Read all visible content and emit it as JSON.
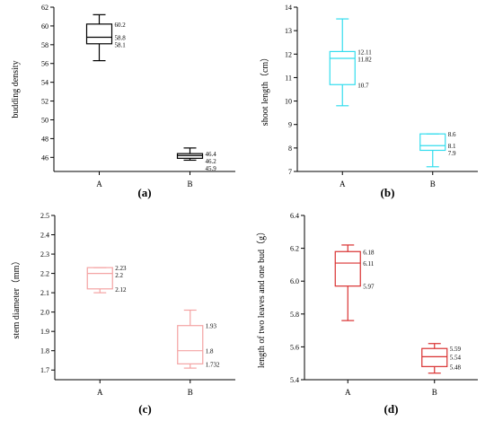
{
  "chart_data": [
    {
      "type": "box",
      "panel_label": "(a)",
      "ylabel": "budding density",
      "categories": [
        "A",
        "B"
      ],
      "ylim": [
        44.5,
        62
      ],
      "yticks": [
        46,
        48,
        50,
        52,
        54,
        56,
        58,
        60,
        62
      ],
      "color": "#000000",
      "boxes": [
        {
          "category": "A",
          "min": 56.3,
          "q1": 58.1,
          "median": 58.8,
          "q3": 60.2,
          "max": 61.2,
          "labels": [
            "60.2",
            "58.8",
            "58.1"
          ]
        },
        {
          "category": "B",
          "min": 45.7,
          "q1": 45.9,
          "median": 46.2,
          "q3": 46.4,
          "max": 47.0,
          "labels": [
            "46.4",
            "46.2",
            "45.9"
          ]
        }
      ]
    },
    {
      "type": "box",
      "panel_label": "(b)",
      "ylabel": "shoot length（cm）",
      "categories": [
        "A",
        "B"
      ],
      "ylim": [
        7,
        14
      ],
      "yticks": [
        7,
        8,
        9,
        10,
        11,
        12,
        13,
        14
      ],
      "color": "#33ddee",
      "boxes": [
        {
          "category": "A",
          "min": 9.8,
          "q1": 10.7,
          "median": 11.82,
          "q3": 12.11,
          "max": 13.5,
          "labels": [
            "12.11",
            "11.82",
            "10.7"
          ]
        },
        {
          "category": "B",
          "min": 7.2,
          "q1": 7.9,
          "median": 8.1,
          "q3": 8.6,
          "max": 8.6,
          "labels": [
            "8.6",
            "8.1",
            "7.9"
          ]
        }
      ]
    },
    {
      "type": "box",
      "panel_label": "(c)",
      "ylabel": "stem diameter（mm）",
      "categories": [
        "A",
        "B"
      ],
      "ylim": [
        1.65,
        2.5
      ],
      "yticks": [
        1.7,
        1.8,
        1.9,
        2.0,
        2.1,
        2.2,
        2.3,
        2.4,
        2.5
      ],
      "color": "#f4a3a3",
      "boxes": [
        {
          "category": "A",
          "min": 2.1,
          "q1": 2.12,
          "median": 2.2,
          "q3": 2.23,
          "max": 2.23,
          "labels": [
            "2.23",
            "2.2",
            "2.12"
          ]
        },
        {
          "category": "B",
          "min": 1.71,
          "q1": 1.732,
          "median": 1.8,
          "q3": 1.93,
          "max": 2.01,
          "labels": [
            "1.93",
            "1.8",
            "1.732"
          ]
        }
      ]
    },
    {
      "type": "box",
      "panel_label": "(d)",
      "ylabel": "length of two leaves and one bud（g）",
      "categories": [
        "A",
        "B"
      ],
      "ylim": [
        5.4,
        6.4
      ],
      "yticks": [
        5.4,
        5.6,
        5.8,
        6.0,
        6.2,
        6.4
      ],
      "color": "#d93030",
      "boxes": [
        {
          "category": "A",
          "min": 5.76,
          "q1": 5.97,
          "median": 6.11,
          "q3": 6.18,
          "max": 6.22,
          "labels": [
            "6.18",
            "6.11",
            "5.97"
          ]
        },
        {
          "category": "B",
          "min": 5.44,
          "q1": 5.48,
          "median": 5.54,
          "q3": 5.59,
          "max": 5.62,
          "labels": [
            "5.59",
            "5.54",
            "5.48"
          ]
        }
      ]
    }
  ]
}
